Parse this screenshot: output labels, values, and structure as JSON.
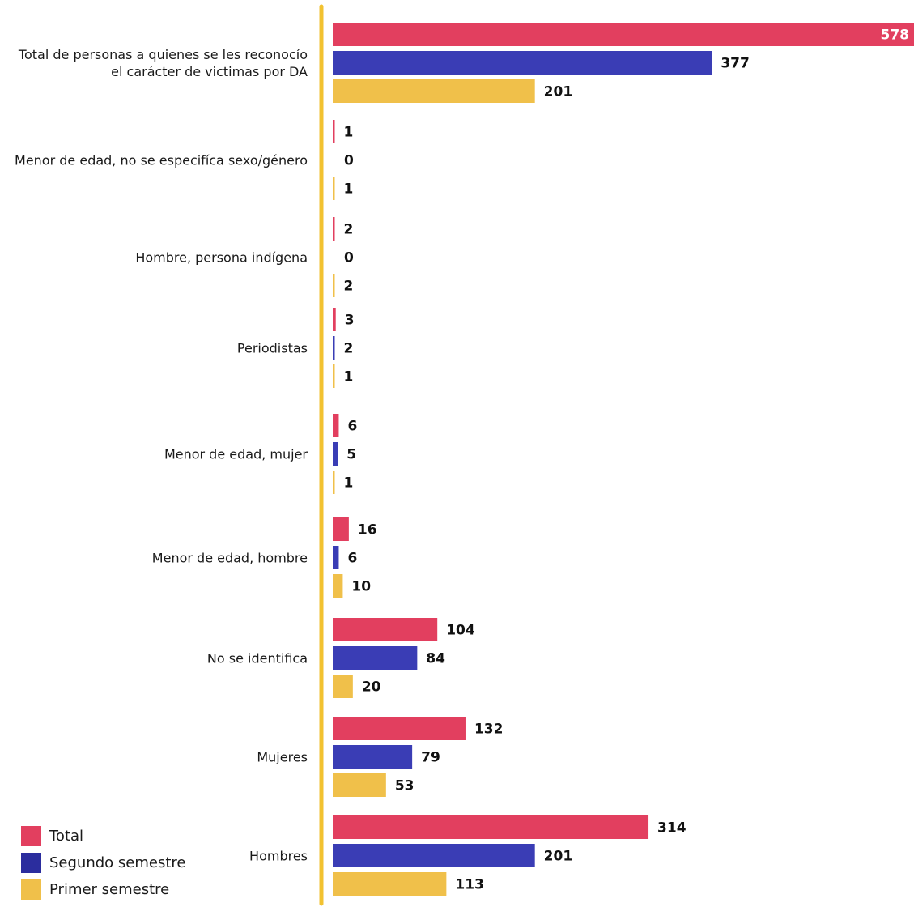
{
  "chart_data": {
    "type": "bar",
    "orientation": "horizontal",
    "categories": [
      [
        "Total de personas a quienes se les reconocío",
        "el carácter de victimas por DA"
      ],
      [
        "Menor de edad, no se especifíca sexo/género"
      ],
      [
        "Hombre, persona indígena"
      ],
      [
        "Periodistas"
      ],
      [
        "Menor de edad, mujer"
      ],
      [
        "Menor de edad, hombre"
      ],
      [
        "No se identifica"
      ],
      [
        "Mujeres"
      ],
      [
        "Hombres"
      ]
    ],
    "series": [
      {
        "name": "Total",
        "color": "#e23f5f",
        "values": [
          578,
          1,
          2,
          3,
          6,
          16,
          104,
          132,
          314
        ]
      },
      {
        "name": "Segundo semestre",
        "color": "#3a3db5",
        "values": [
          377,
          0,
          0,
          2,
          5,
          6,
          84,
          79,
          201
        ]
      },
      {
        "name": "Primer semestre",
        "color": "#f0c04a",
        "values": [
          201,
          1,
          2,
          1,
          1,
          10,
          20,
          53,
          113
        ]
      }
    ],
    "xlim": [
      0,
      578
    ],
    "grid": false,
    "legend_position": "bottom-left"
  },
  "legend": {
    "items": [
      {
        "label": "Total",
        "color": "#e23f5f"
      },
      {
        "label": "Segundo semestre",
        "color": "#2b2d9e"
      },
      {
        "label": "Primer semestre",
        "color": "#f0c04a"
      }
    ]
  },
  "colors": {
    "axis": "#f2c230"
  }
}
